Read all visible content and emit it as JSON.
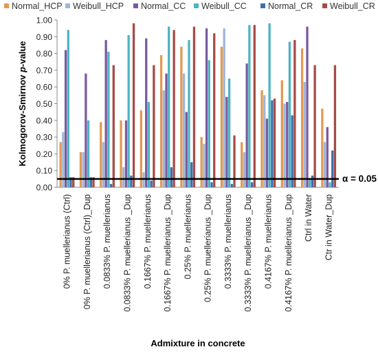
{
  "chart_data": {
    "type": "bar",
    "xlabel": "Admixture in concrete",
    "ylabel_prefix": "Kolmogorov-Smirnov ",
    "ylabel_italic": "p",
    "ylabel_suffix": "-value",
    "ylim": [
      0,
      1
    ],
    "yticks": [
      "0.00",
      "0.10",
      "0.20",
      "0.30",
      "0.40",
      "0.50",
      "0.60",
      "0.70",
      "0.80",
      "0.90",
      "1.00"
    ],
    "grid": false,
    "legend_position": "top",
    "reference_line": {
      "value": 0.05,
      "label": "α = 0.05",
      "color": "#000000"
    },
    "categories": [
      "0% P. muellerianus  (Ctrl)",
      "0% P. muellerianus  (Ctrl)_Dup",
      "0.0833% P. muellerianus",
      "0.0833% P. muellerianus _Dup",
      "0.1667% P. muellerianus",
      "0.1667% P. muellerianus _Dup",
      "0.25% P. muellerianus",
      "0.25% P. muellerianus _Dup",
      "0.3333% P. muellerianus",
      "0.3333% P. muellerianus _Dup",
      "0.4167% P. muellerianus",
      "0.4167% P. muellerianus _Dup",
      "Ctrl in Water",
      "Ctr in Water_Dup"
    ],
    "series": [
      {
        "name": "Normal_HCP",
        "color": "#e29a52",
        "values": [
          0.27,
          0.21,
          0.39,
          0.4,
          0.46,
          0.79,
          0.84,
          0.3,
          0.84,
          0.27,
          0.58,
          0.64,
          0.83,
          0.47
        ]
      },
      {
        "name": "Weibull_HCP",
        "color": "#9eb6d8",
        "values": [
          0.33,
          0.21,
          0.27,
          0.12,
          0.09,
          0.58,
          0.68,
          0.26,
          0.95,
          0.21,
          0.55,
          0.5,
          0.63,
          0.27
        ]
      },
      {
        "name": "Normal_CC",
        "color": "#7b5a9e",
        "values": [
          0.82,
          0.68,
          0.88,
          0.4,
          0.89,
          0.68,
          0.45,
          0.95,
          0.54,
          0.74,
          0.41,
          0.51,
          0.96,
          0.36
        ]
      },
      {
        "name": "Weibull_CC",
        "color": "#4fb3c4",
        "values": [
          0.94,
          0.4,
          0.81,
          0.91,
          0.51,
          0.96,
          0.88,
          0.76,
          0.65,
          0.97,
          0.98,
          0.87,
          0.05,
          0.03
        ]
      },
      {
        "name": "Normal_CR",
        "color": "#3f6faa",
        "values": [
          0.06,
          0.06,
          0.02,
          0.07,
          0.04,
          0.12,
          0.15,
          0.03,
          0.02,
          0.03,
          0.52,
          0.43,
          0.07,
          0.22
        ]
      },
      {
        "name": "Weibull_CR",
        "color": "#a74b47",
        "values": [
          0.06,
          0.06,
          0.73,
          0.98,
          0.73,
          0.94,
          0.96,
          0.92,
          0.31,
          0.97,
          0.53,
          0.88,
          0.73,
          0.73
        ]
      }
    ]
  }
}
